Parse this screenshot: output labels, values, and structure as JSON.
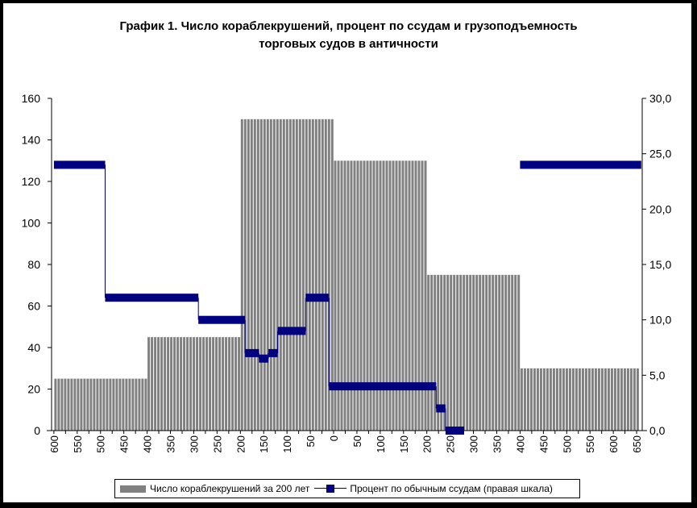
{
  "chart_data": {
    "type": "bar+line",
    "title_lines": [
      "График 1. Число кораблекрушений, процент по ссудам и грузоподъемность",
      "торговых судов в античности"
    ],
    "x_tick_labels": [
      "600",
      "550",
      "500",
      "450",
      "400",
      "350",
      "300",
      "250",
      "200",
      "150",
      "100",
      "50",
      "0",
      "50",
      "100",
      "150",
      "200",
      "250",
      "300",
      "350",
      "400",
      "450",
      "500",
      "550",
      "600",
      "650"
    ],
    "y_left": {
      "min": 0,
      "max": 160,
      "ticks": [
        "0",
        "20",
        "40",
        "60",
        "80",
        "100",
        "120",
        "140",
        "160"
      ]
    },
    "y_right": {
      "min": 0,
      "max": 30,
      "ticks": [
        "0,0",
        "5,0",
        "10,0",
        "15,0",
        "20,0",
        "25,0",
        "30,0"
      ]
    },
    "bar_series": {
      "name": "Число кораблекрушений за 200 лет",
      "color": "#808080",
      "segments": [
        {
          "from": -600,
          "to": -400,
          "value": 25
        },
        {
          "from": -400,
          "to": -200,
          "value": 45
        },
        {
          "from": -200,
          "to": 0,
          "value": 150
        },
        {
          "from": 0,
          "to": 200,
          "value": 130
        },
        {
          "from": 200,
          "to": 400,
          "value": 75
        },
        {
          "from": 400,
          "to": 660,
          "value": 30
        }
      ]
    },
    "line_series": {
      "name": "Процент по обычным ссудам (правая шкала)",
      "color": "#000080",
      "segments": [
        {
          "from": -600,
          "to": -490,
          "value": 24
        },
        {
          "from": -490,
          "to": -290,
          "value": 12
        },
        {
          "from": -290,
          "to": -190,
          "value": 10
        },
        {
          "from": -190,
          "to": -160,
          "value": 7
        },
        {
          "from": -160,
          "to": -140,
          "value": 6.5
        },
        {
          "from": -140,
          "to": -120,
          "value": 7
        },
        {
          "from": -120,
          "to": -60,
          "value": 9
        },
        {
          "from": -60,
          "to": -10,
          "value": 12
        },
        {
          "from": -10,
          "to": 220,
          "value": 4
        },
        {
          "from": 220,
          "to": 240,
          "value": 2
        },
        {
          "from": 240,
          "to": 280,
          "value": 0
        },
        {
          "from": 400,
          "to": 660,
          "value": 24
        }
      ]
    }
  },
  "legend": {
    "bar_label": "Число кораблекрушений за 200 лет",
    "line_label": "Процент по обычным ссудам (правая шкала)"
  }
}
